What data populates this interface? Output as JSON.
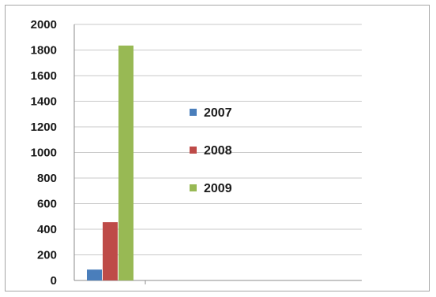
{
  "chart_data": {
    "type": "bar",
    "categories": [
      ""
    ],
    "series": [
      {
        "name": "2007",
        "values": [
          85
        ],
        "color": "#4a7ebb"
      },
      {
        "name": "2008",
        "values": [
          455
        ],
        "color": "#be4b48"
      },
      {
        "name": "2009",
        "values": [
          1835
        ],
        "color": "#98b954"
      }
    ],
    "title": "",
    "xlabel": "",
    "ylabel": "",
    "ylim": [
      0,
      2000
    ],
    "yticks": [
      "0",
      "200",
      "400",
      "600",
      "800",
      "1000",
      "1200",
      "1400",
      "1600",
      "1800",
      "2000"
    ],
    "grid": true,
    "legend_position": "center-right"
  }
}
